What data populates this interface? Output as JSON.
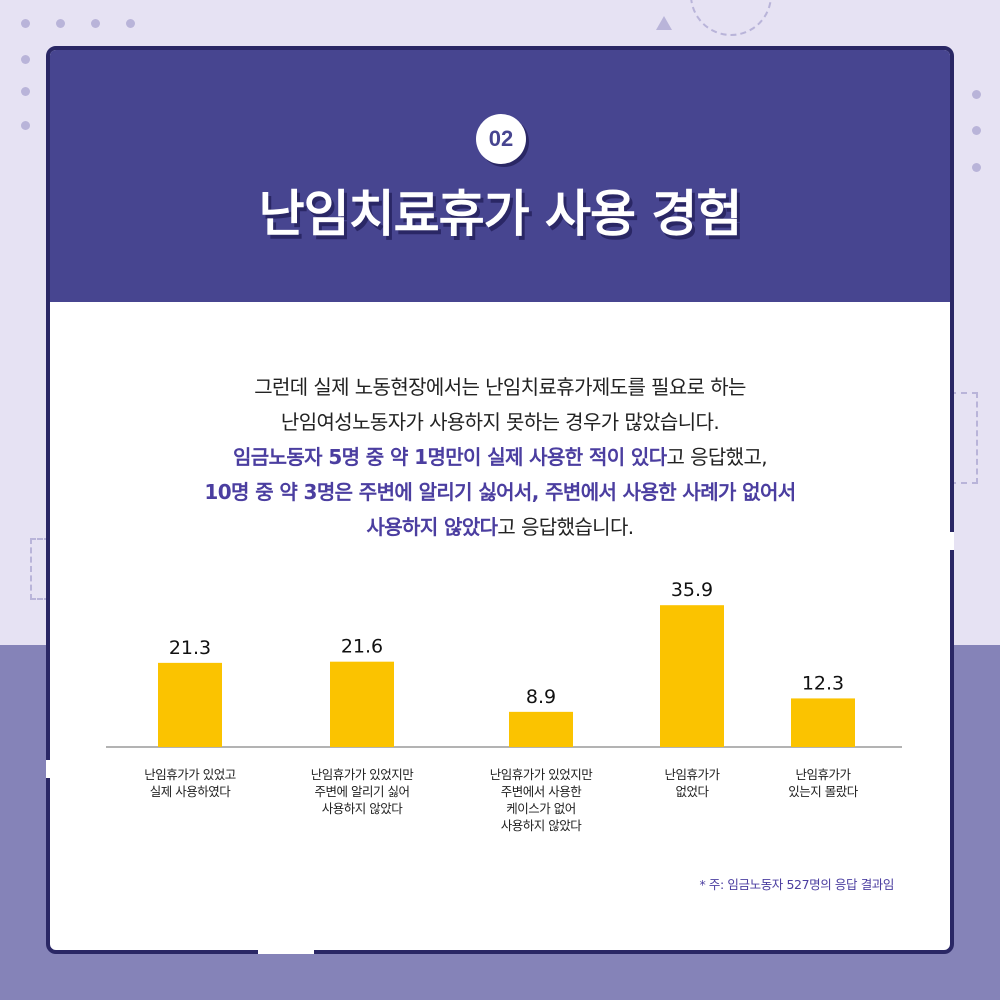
{
  "header": {
    "badge": "02",
    "title": "난임치료휴가 사용 경험"
  },
  "intro": {
    "line1": "그런데 실제 노동현장에서는 난임치료휴가제도를 필요로 하는",
    "line2": "난임여성노동자가 사용하지 못하는 경우가 많았습니다.",
    "line3_highlight": "임금노동자 5명 중 약 1명만이 실제 사용한 적이 있다",
    "line3_rest": "고 응답했고,",
    "line4_highlight": "10명 중 약 3명은 주변에 알리기 싫어서, 주변에서 사용한 사례가 없어서",
    "line5_highlight": "사용하지 않았다",
    "line5_rest": "고 응답했습니다."
  },
  "chart_data": {
    "type": "bar",
    "categories": [
      "난임휴가가 있었고 실제 사용하였다",
      "난임휴가가 있었지만 주변에 알리기 싫어 사용하지 않았다",
      "난임휴가가 있었지만 주변에서 사용한 케이스가 없어 사용하지 않았다",
      "난임휴가가 없었다",
      "난임휴가가 있는지 몰랐다"
    ],
    "category_lines": [
      [
        "난임휴가가 있었고",
        "실제 사용하였다"
      ],
      [
        "난임휴가가 있었지만",
        "주변에 알리기 싫어",
        "사용하지 않았다"
      ],
      [
        "난임휴가가 있었지만",
        "주변에서 사용한",
        "케이스가 없어",
        "사용하지 않았다"
      ],
      [
        "난임휴가가",
        "없었다"
      ],
      [
        "난임휴가가",
        "있는지 몰랐다"
      ]
    ],
    "values": [
      21.3,
      21.6,
      8.9,
      35.9,
      12.3
    ],
    "value_labels": [
      "21.3",
      "21.6",
      "8.9",
      "35.9",
      "12.3"
    ],
    "bar_color": "#fbc300",
    "ylim": [
      0,
      40
    ],
    "grid": false,
    "xlabel": "",
    "ylabel": ""
  },
  "footnote": "* 주: 임금노동자 527명의 응답 결과임",
  "colors": {
    "header_bg": "#474590",
    "highlight": "#4b3ea0",
    "page_bg_top": "#e6e2f3",
    "page_bg_bottom": "#8583b8"
  }
}
